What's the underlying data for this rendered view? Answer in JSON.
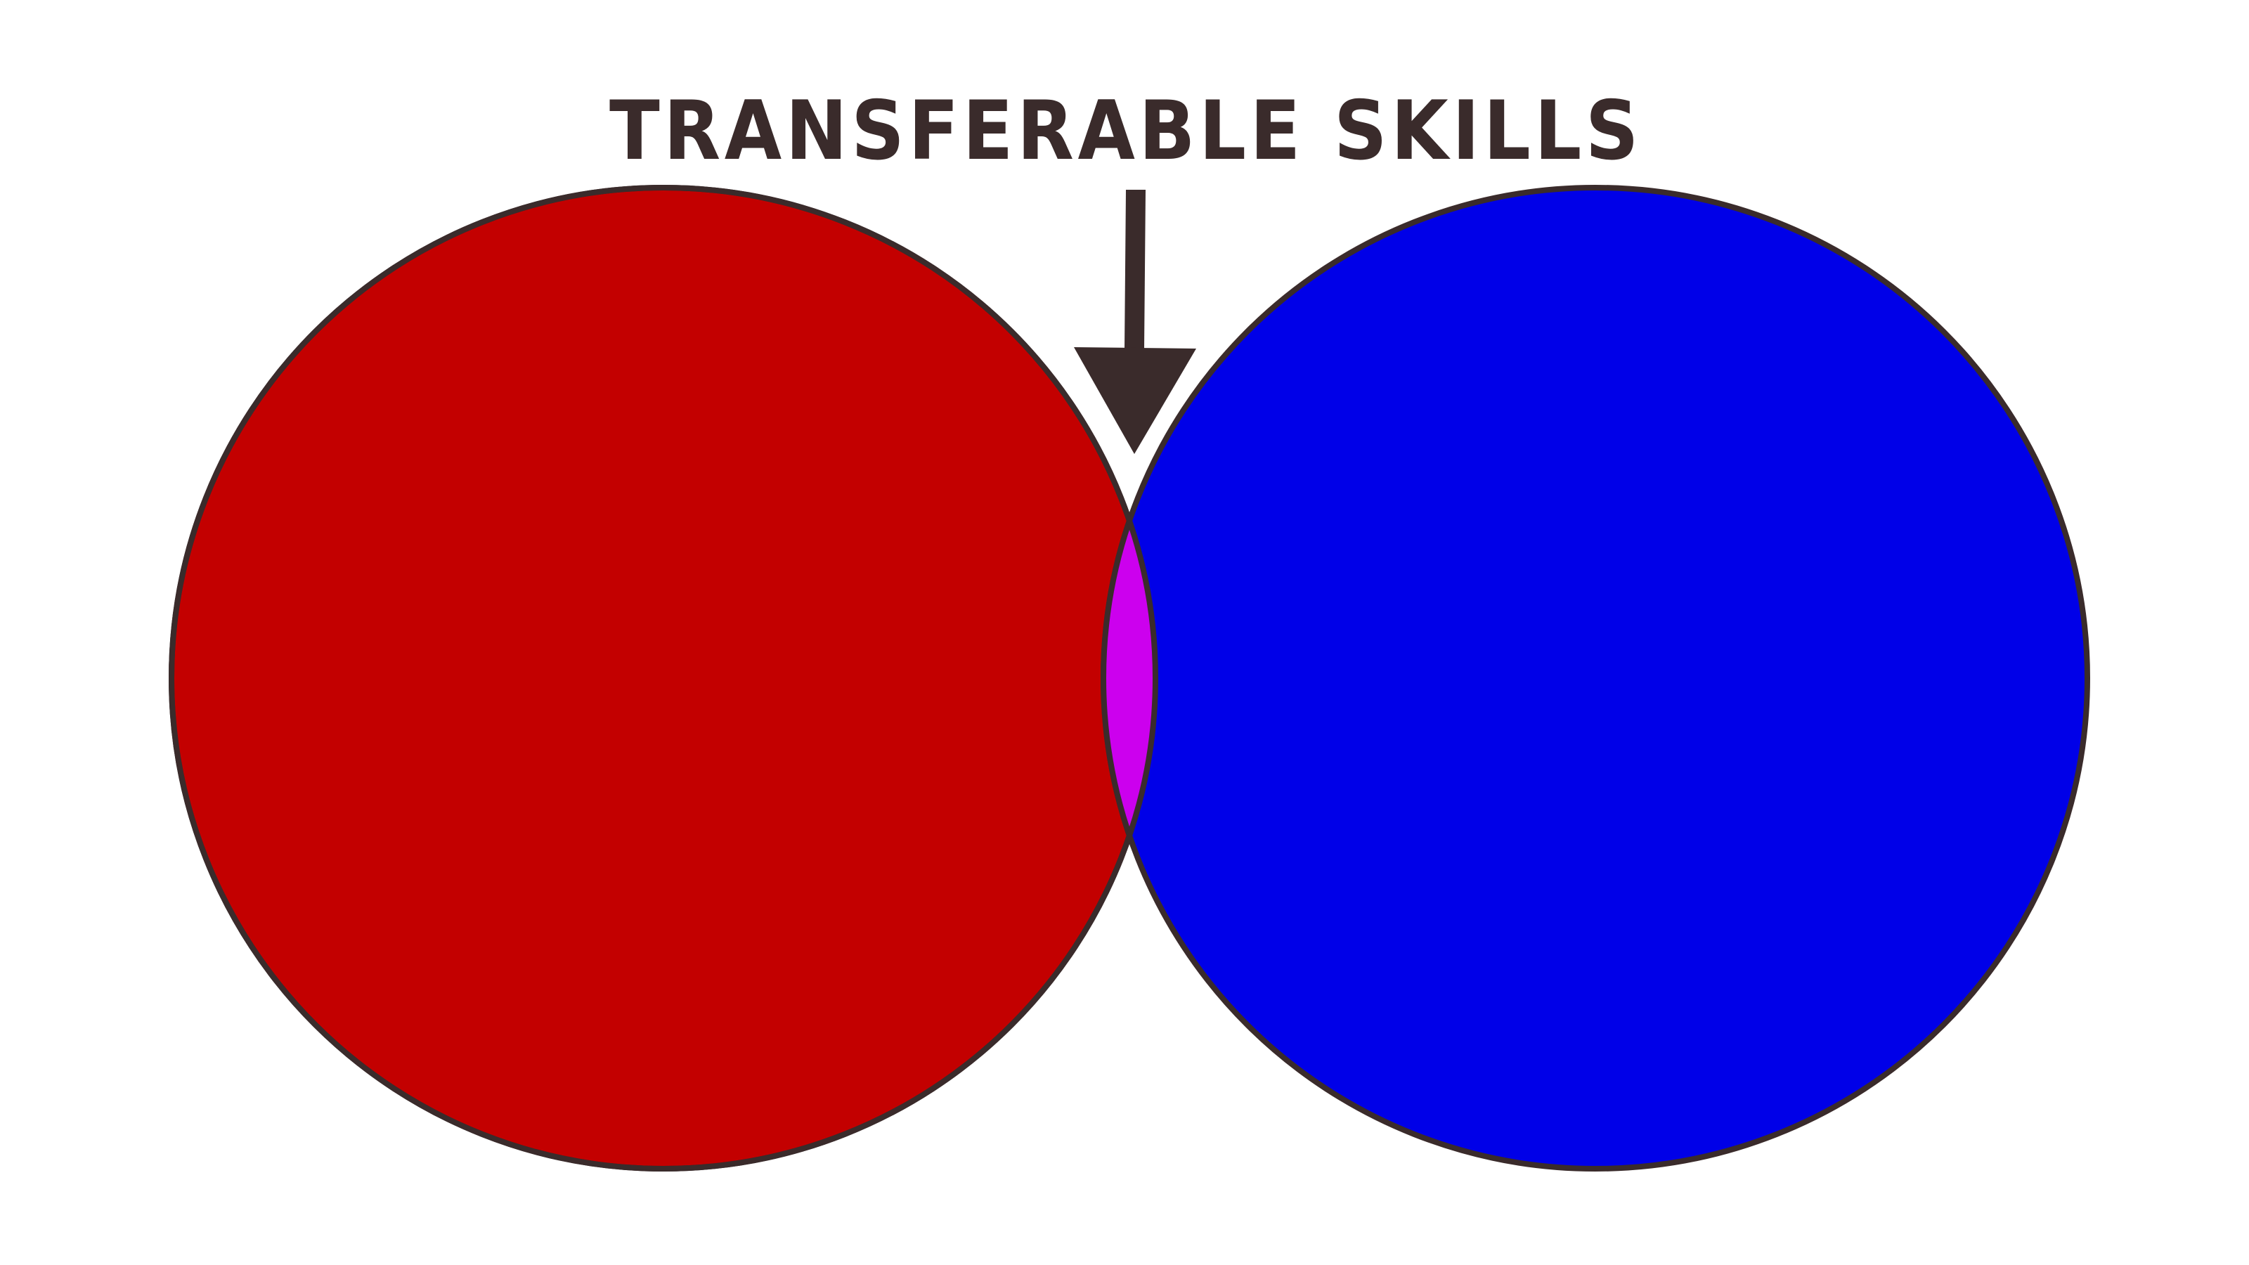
{
  "diagram": {
    "label": "TRANSFERABLE SKILLS",
    "colors": {
      "left_circle": "#c30000",
      "right_circle": "#0000e8",
      "overlap": "#cc00ee",
      "outline": "#3a2b2b",
      "label": "#3a2b2b",
      "arrow": "#3a2b2b",
      "background": "#ffffff"
    },
    "icons": {
      "arrow": "arrow-down-icon"
    }
  }
}
